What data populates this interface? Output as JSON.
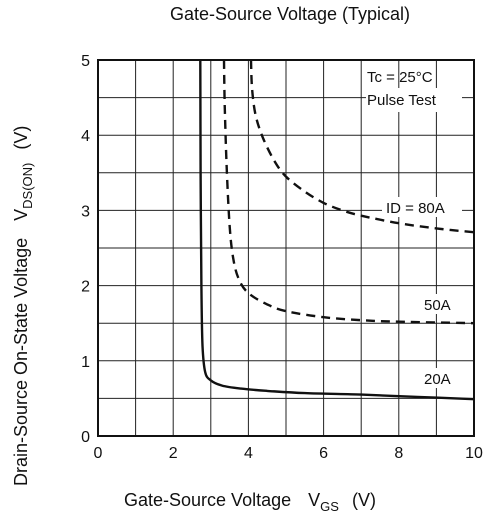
{
  "chart_data": {
    "type": "line",
    "title": "Gate-Source Voltage (Typical)",
    "xlabel": "Gate-Source Voltage",
    "xlabel_symbol": "V",
    "xlabel_sub": "GS",
    "xlabel_unit": "(V)",
    "ylabel": "Drain-Source On-State Voltage",
    "ylabel_symbol": "V",
    "ylabel_sub": "DS(ON)",
    "ylabel_unit": "(V)",
    "xlim": [
      0,
      10
    ],
    "ylim": [
      0,
      5
    ],
    "xticks": [
      "0",
      "2",
      "4",
      "6",
      "8",
      "10"
    ],
    "yticks": [
      "0",
      "1",
      "2",
      "3",
      "4",
      "5"
    ],
    "grid": true,
    "conditions": [
      "Tc = 25°C",
      "Pulse Test"
    ],
    "series": [
      {
        "name": "ID = 80A",
        "style": "dashed",
        "x": [
          4.07,
          4.1,
          4.2,
          4.4,
          4.7,
          5.0,
          5.5,
          6.0,
          6.5,
          7.0,
          8.0,
          9.0,
          10.0
        ],
        "y": [
          5.0,
          4.6,
          4.25,
          3.95,
          3.65,
          3.45,
          3.25,
          3.1,
          3.0,
          2.93,
          2.83,
          2.76,
          2.71
        ]
      },
      {
        "name": "50A",
        "style": "dashed",
        "x": [
          3.35,
          3.37,
          3.42,
          3.5,
          3.6,
          3.75,
          4.0,
          4.5,
          5.0,
          6.0,
          7.0,
          8.0,
          10.0
        ],
        "y": [
          5.0,
          4.4,
          3.6,
          2.8,
          2.35,
          2.08,
          1.9,
          1.75,
          1.66,
          1.58,
          1.54,
          1.52,
          1.5
        ]
      },
      {
        "name": "20A",
        "style": "solid",
        "x": [
          2.72,
          2.73,
          2.75,
          2.78,
          2.85,
          3.0,
          3.3,
          3.8,
          4.5,
          5.5,
          7.0,
          8.5,
          10.0
        ],
        "y": [
          5.0,
          3.5,
          2.0,
          1.2,
          0.85,
          0.74,
          0.67,
          0.63,
          0.6,
          0.57,
          0.55,
          0.52,
          0.49
        ]
      }
    ]
  }
}
